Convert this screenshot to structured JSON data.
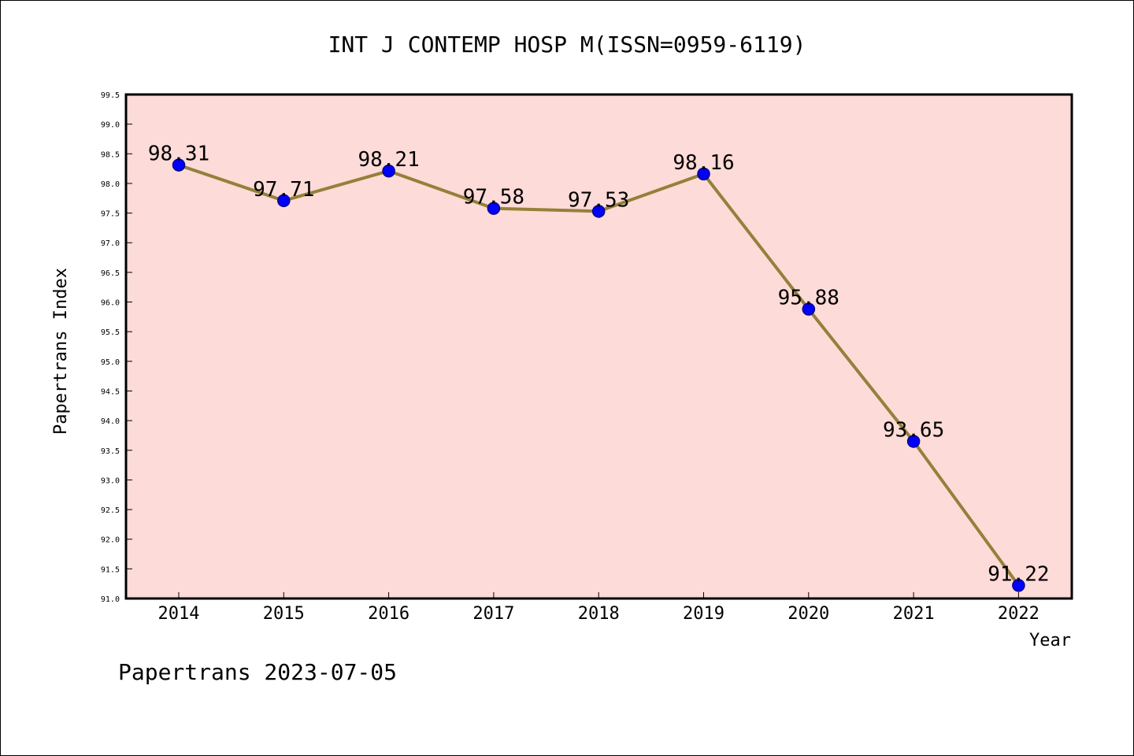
{
  "chart_data": {
    "type": "line",
    "title": "INT J CONTEMP HOSP M(ISSN=0959-6119)",
    "xlabel": "Year",
    "ylabel": "Papertrans Index",
    "categories": [
      "2014",
      "2015",
      "2016",
      "2017",
      "2018",
      "2019",
      "2020",
      "2021",
      "2022"
    ],
    "values": [
      98.31,
      97.71,
      98.21,
      97.58,
      97.53,
      98.16,
      95.88,
      93.65,
      91.22
    ],
    "data_labels": [
      "98.31",
      "97.71",
      "98.21",
      "97.58",
      "97.53",
      "98.16",
      "95.88",
      "93.65",
      "91.22"
    ],
    "ylim": [
      91.0,
      99.5
    ],
    "yticks": [
      "91.0",
      "91.5",
      "92.0",
      "92.5",
      "93.0",
      "93.5",
      "94.0",
      "94.5",
      "95.0",
      "95.5",
      "96.0",
      "96.5",
      "97.0",
      "97.5",
      "98.0",
      "98.5",
      "99.0",
      "99.5"
    ],
    "grid": false,
    "colors": {
      "plot_background": "#fddbd8",
      "line": "#94803a",
      "marker": "#0000ff",
      "marker_edge": "#00008b"
    }
  },
  "footer": "Papertrans 2023-07-05"
}
